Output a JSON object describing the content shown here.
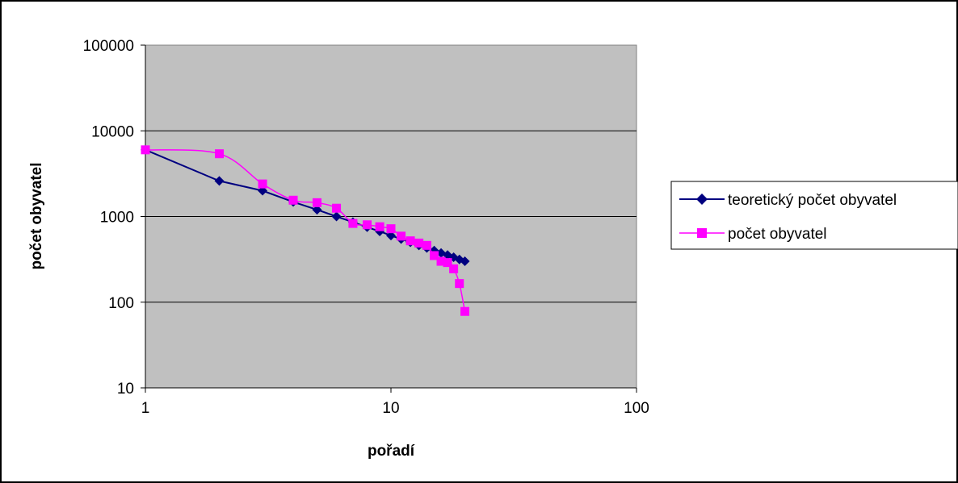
{
  "chart_data": {
    "type": "line",
    "title": "",
    "xlabel": "pořadí",
    "ylabel": "počet obyvatel",
    "xscale": "log",
    "yscale": "log",
    "xlim": [
      1,
      100
    ],
    "ylim": [
      10,
      100000
    ],
    "x_ticks": [
      "1",
      "10",
      "100"
    ],
    "y_ticks": [
      "10",
      "100",
      "1000",
      "10000",
      "100000"
    ],
    "grid": "horizontal",
    "legend_position": "right",
    "plot_background": "#c0c0c0",
    "series": [
      {
        "name": "teoretický počet obyvatel",
        "color": "#000080",
        "marker": "diamond",
        "smooth": false,
        "x": [
          1,
          2,
          3,
          4,
          5,
          6,
          7,
          8,
          9,
          10,
          11,
          12,
          13,
          14,
          15,
          16,
          17,
          18,
          19,
          20
        ],
        "y": [
          6000,
          2600,
          2000,
          1480,
          1200,
          1000,
          860,
          750,
          670,
          600,
          545,
          500,
          460,
          430,
          400,
          375,
          355,
          335,
          315,
          300
        ]
      },
      {
        "name": "počet obyvatel",
        "color": "#ff00ff",
        "marker": "square",
        "smooth": true,
        "x": [
          1,
          2,
          3,
          4,
          5,
          6,
          7,
          8,
          9,
          10,
          11,
          12,
          13,
          14,
          15,
          16,
          17,
          18,
          19,
          20
        ],
        "y": [
          6000,
          5400,
          2400,
          1550,
          1450,
          1250,
          830,
          800,
          760,
          720,
          590,
          520,
          490,
          460,
          350,
          300,
          290,
          245,
          165,
          78
        ]
      }
    ]
  }
}
